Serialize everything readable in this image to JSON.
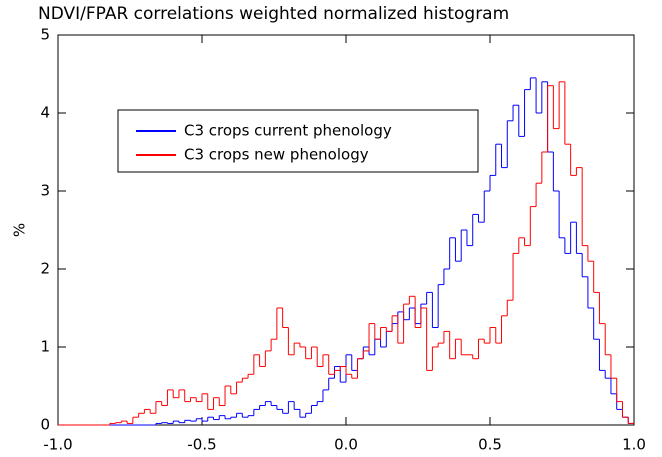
{
  "chart_data": {
    "type": "histogram-step",
    "title": "NDVI/FPAR correlations weighted normalized histogram",
    "y_label": "%",
    "bins": [
      -1.0,
      -0.98,
      -0.96,
      -0.94,
      -0.92,
      -0.9,
      -0.88,
      -0.86,
      -0.84,
      -0.82,
      -0.8,
      -0.78,
      -0.76,
      -0.74,
      -0.72,
      -0.7,
      -0.68,
      -0.66,
      -0.64,
      -0.62,
      -0.6,
      -0.58,
      -0.56,
      -0.54,
      -0.52,
      -0.5,
      -0.48,
      -0.46,
      -0.44,
      -0.42,
      -0.4,
      -0.38,
      -0.36,
      -0.34,
      -0.32,
      -0.3,
      -0.28,
      -0.26,
      -0.24,
      -0.22,
      -0.2,
      -0.18,
      -0.16,
      -0.14,
      -0.12,
      -0.1,
      -0.08,
      -0.06,
      -0.04,
      -0.02,
      0.0,
      0.02,
      0.04,
      0.06,
      0.08,
      0.1,
      0.12,
      0.14,
      0.16,
      0.18,
      0.2,
      0.22,
      0.24,
      0.26,
      0.28,
      0.3,
      0.32,
      0.34,
      0.36,
      0.38,
      0.4,
      0.42,
      0.44,
      0.46,
      0.48,
      0.5,
      0.52,
      0.54,
      0.56,
      0.58,
      0.6,
      0.62,
      0.64,
      0.66,
      0.68,
      0.7,
      0.72,
      0.74,
      0.76,
      0.78,
      0.8,
      0.82,
      0.84,
      0.86,
      0.88,
      0.9,
      0.92,
      0.94,
      0.96,
      0.98,
      1.0
    ],
    "series": [
      {
        "name": "C3 crops current phenology",
        "color": "#0000ff",
        "values": [
          0,
          0,
          0,
          0,
          0,
          0,
          0,
          0,
          0,
          0,
          0,
          0,
          0,
          0,
          0,
          0,
          0,
          0.02,
          0.03,
          0.02,
          0.05,
          0.03,
          0.06,
          0.05,
          0.08,
          0.05,
          0.1,
          0.07,
          0.12,
          0.08,
          0.1,
          0.15,
          0.1,
          0.12,
          0.2,
          0.25,
          0.3,
          0.25,
          0.2,
          0.15,
          0.3,
          0.2,
          0.1,
          0.15,
          0.25,
          0.3,
          0.45,
          0.6,
          0.75,
          0.55,
          0.9,
          0.7,
          0.85,
          1.0,
          0.9,
          1.1,
          1.0,
          1.2,
          1.3,
          1.45,
          1.35,
          1.5,
          1.3,
          1.55,
          1.7,
          1.25,
          1.8,
          2.0,
          2.4,
          2.1,
          2.5,
          2.3,
          2.7,
          2.6,
          3.0,
          3.2,
          3.6,
          3.3,
          3.9,
          4.1,
          3.7,
          4.3,
          4.45,
          4.0,
          4.4,
          3.5,
          3.0,
          2.4,
          2.2,
          2.6,
          2.2,
          1.9,
          1.5,
          1.1,
          0.7,
          0.6,
          0.4,
          0.2,
          0.1,
          0.02
        ]
      },
      {
        "name": "C3 crops new phenology",
        "color": "#ff0000",
        "values": [
          0,
          0,
          0,
          0,
          0,
          0,
          0,
          0,
          0,
          0.02,
          0.03,
          0.05,
          0.02,
          0.1,
          0.15,
          0.2,
          0.15,
          0.3,
          0.25,
          0.45,
          0.35,
          0.45,
          0.3,
          0.35,
          0.3,
          0.4,
          0.2,
          0.35,
          0.25,
          0.5,
          0.4,
          0.55,
          0.6,
          0.65,
          0.9,
          0.75,
          0.95,
          1.1,
          1.5,
          1.25,
          0.9,
          1.05,
          1.0,
          0.85,
          1.0,
          0.75,
          0.9,
          0.65,
          0.7,
          0.75,
          0.65,
          0.6,
          0.85,
          0.95,
          1.3,
          1.1,
          1.25,
          1.2,
          1.4,
          1.05,
          1.55,
          1.65,
          1.25,
          1.5,
          0.7,
          1.0,
          1.05,
          1.2,
          0.85,
          1.1,
          0.9,
          0.9,
          0.85,
          1.1,
          1.05,
          1.25,
          1.05,
          1.4,
          1.6,
          2.2,
          2.4,
          2.3,
          2.8,
          3.1,
          3.5,
          4.35,
          3.8,
          4.4,
          3.6,
          3.2,
          3.3,
          2.3,
          2.1,
          1.7,
          1.3,
          0.9,
          0.6,
          0.3,
          0.1,
          0.02
        ]
      }
    ],
    "xlim": [
      -1.0,
      1.0
    ],
    "xticks": [
      {
        "value": -1.0,
        "label": "-1.0"
      },
      -0.5,
      {
        "value": 0.0,
        "label": "0.0"
      },
      0.5,
      {
        "value": 1.0,
        "label": "1.0"
      }
    ],
    "ylim": [
      0,
      5
    ],
    "yticks": [
      0,
      1,
      2,
      3,
      4,
      5
    ]
  }
}
